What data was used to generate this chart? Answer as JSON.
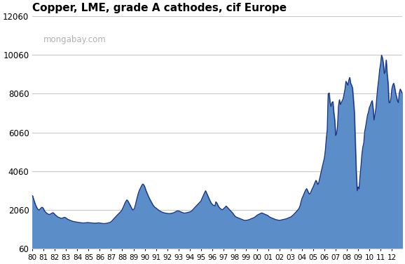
{
  "title": "Copper, LME, grade A cathodes, cif Europe",
  "watermark": "mongabay.com",
  "fill_color": "#5b8dc8",
  "line_color": "#1a3080",
  "background_color": "#ffffff",
  "grid_color": "#c8c8c8",
  "ylim": [
    60,
    12060
  ],
  "yticks": [
    60,
    2060,
    4060,
    6060,
    8060,
    10060,
    12060
  ],
  "title_fontsize": 11,
  "x_tick_labels": [
    "80",
    "81",
    "82",
    "83",
    "84",
    "85",
    "86",
    "87",
    "88",
    "89",
    "90",
    "91",
    "92",
    "93",
    "94",
    "95",
    "96",
    "97",
    "98",
    "99",
    "00",
    "01",
    "02",
    "03",
    "04",
    "05",
    "06",
    "07",
    "08",
    "09",
    "10",
    "11",
    "12"
  ],
  "monthly_data": {
    "1980": [
      2800,
      2650,
      2500,
      2350,
      2250,
      2150,
      2080,
      2050,
      2100,
      2150,
      2200,
      2180
    ],
    "1981": [
      2100,
      2000,
      1950,
      1900,
      1870,
      1840,
      1820,
      1850,
      1870,
      1900,
      1920,
      1880
    ],
    "1982": [
      1820,
      1780,
      1740,
      1700,
      1680,
      1660,
      1640,
      1630,
      1640,
      1660,
      1680,
      1670
    ],
    "1983": [
      1640,
      1600,
      1570,
      1550,
      1530,
      1510,
      1490,
      1475,
      1465,
      1455,
      1445,
      1435
    ],
    "1984": [
      1430,
      1420,
      1410,
      1405,
      1400,
      1395,
      1390,
      1390,
      1395,
      1400,
      1405,
      1410
    ],
    "1985": [
      1405,
      1400,
      1395,
      1390,
      1385,
      1380,
      1378,
      1375,
      1378,
      1385,
      1390,
      1395
    ],
    "1986": [
      1385,
      1375,
      1368,
      1362,
      1360,
      1358,
      1362,
      1370,
      1380,
      1395,
      1408,
      1420
    ],
    "1987": [
      1455,
      1500,
      1555,
      1610,
      1660,
      1710,
      1760,
      1815,
      1860,
      1910,
      1960,
      2010
    ],
    "1988": [
      2100,
      2200,
      2320,
      2430,
      2520,
      2580,
      2520,
      2430,
      2340,
      2240,
      2150,
      2060
    ],
    "1989": [
      2080,
      2150,
      2320,
      2530,
      2720,
      2900,
      3050,
      3150,
      3250,
      3350,
      3400,
      3350
    ],
    "1990": [
      3250,
      3100,
      2980,
      2860,
      2750,
      2650,
      2560,
      2470,
      2380,
      2300,
      2240,
      2190
    ],
    "1991": [
      2160,
      2120,
      2080,
      2040,
      2010,
      1985,
      1960,
      1940,
      1925,
      1910,
      1900,
      1890
    ],
    "1992": [
      1880,
      1875,
      1872,
      1875,
      1880,
      1890,
      1905,
      1920,
      1945,
      1970,
      1995,
      2015
    ],
    "1993": [
      2010,
      1990,
      1970,
      1950,
      1930,
      1912,
      1900,
      1900,
      1908,
      1918,
      1930,
      1942
    ],
    "1994": [
      1958,
      1978,
      2005,
      2055,
      2110,
      2165,
      2215,
      2265,
      2315,
      2365,
      2415,
      2465
    ],
    "1995": [
      2520,
      2630,
      2745,
      2850,
      2960,
      3050,
      2940,
      2830,
      2720,
      2610,
      2510,
      2410
    ],
    "1996": [
      2360,
      2310,
      2290,
      2270,
      2480,
      2420,
      2320,
      2220,
      2170,
      2120,
      2090,
      2065
    ],
    "1997": [
      2110,
      2160,
      2210,
      2260,
      2210,
      2155,
      2100,
      2050,
      2000,
      1950,
      1900,
      1820
    ],
    "1998": [
      1760,
      1715,
      1690,
      1668,
      1648,
      1625,
      1605,
      1585,
      1565,
      1545,
      1532,
      1520
    ],
    "1999": [
      1522,
      1532,
      1542,
      1552,
      1572,
      1592,
      1612,
      1632,
      1652,
      1672,
      1710,
      1740
    ],
    "2000": [
      1790,
      1815,
      1840,
      1868,
      1888,
      1908,
      1888,
      1865,
      1845,
      1825,
      1808,
      1785
    ],
    "2001": [
      1755,
      1710,
      1685,
      1660,
      1642,
      1622,
      1602,
      1582,
      1562,
      1552,
      1542,
      1530
    ],
    "2002": [
      1522,
      1532,
      1545,
      1558,
      1568,
      1578,
      1590,
      1600,
      1618,
      1640,
      1660,
      1682
    ],
    "2003": [
      1695,
      1735,
      1778,
      1820,
      1870,
      1920,
      1975,
      2030,
      2085,
      2160,
      2280,
      2480
    ],
    "2004": [
      2650,
      2760,
      2880,
      2990,
      3090,
      3160,
      3060,
      2940,
      2880,
      2930,
      3050,
      3160
    ],
    "2005": [
      3250,
      3370,
      3490,
      3590,
      3480,
      3370,
      3480,
      3700,
      3920,
      4150,
      4350,
      4550
    ],
    "2006": [
      4750,
      5150,
      5750,
      6200,
      8050,
      8100,
      7600,
      7400,
      7600,
      7650,
      7100,
      6700
    ],
    "2007": [
      5900,
      6000,
      6380,
      7400,
      7750,
      7500,
      7600,
      7700,
      7800,
      8050,
      8300,
      8700
    ],
    "2008": [
      8600,
      8500,
      8750,
      8900,
      8600,
      8500,
      8350,
      7750,
      7100,
      5600,
      4050,
      3050
    ],
    "2009": [
      3250,
      3150,
      3780,
      4300,
      4900,
      5300,
      5500,
      6100,
      6350,
      6650,
      6950,
      7100
    ],
    "2010": [
      7350,
      7450,
      7600,
      7700,
      7300,
      6700,
      7000,
      7300,
      7900,
      8400,
      8800,
      9300
    ],
    "2011": [
      9600,
      10050,
      9900,
      9600,
      9100,
      9200,
      9800,
      9100,
      8600,
      7600,
      7600,
      7800
    ],
    "2012": [
      8300,
      8500,
      8600,
      8400,
      8100,
      7900,
      7700,
      7600,
      8100,
      8300,
      8200,
      8100
    ]
  }
}
